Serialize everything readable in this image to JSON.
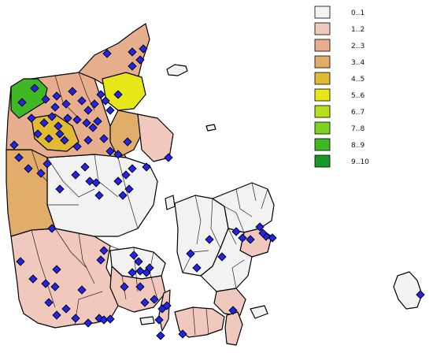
{
  "legend": {
    "items": [
      {
        "label": "0..1",
        "color": "#f2f2f2"
      },
      {
        "label": "1..2",
        "color": "#f0c8bd"
      },
      {
        "label": "2..3",
        "color": "#e7ae8e"
      },
      {
        "label": "3..4",
        "color": "#e2ad6b"
      },
      {
        "label": "4..5",
        "color": "#e1bb35"
      },
      {
        "label": "5..6",
        "color": "#e7e618"
      },
      {
        "label": "6..7",
        "color": "#b8df1d"
      },
      {
        "label": "7..8",
        "color": "#7fd222"
      },
      {
        "label": "8..9",
        "color": "#3fb825"
      },
      {
        "label": "9..10",
        "color": "#169a25"
      }
    ]
  },
  "map": {
    "marker_color": "#2323ee",
    "marker_shape": "diamond-icon"
  }
}
